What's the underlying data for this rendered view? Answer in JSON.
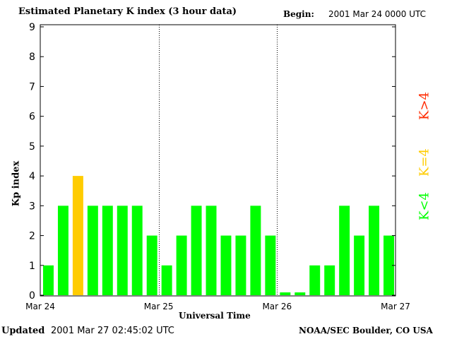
{
  "header": {
    "title": "Estimated Planetary K index (3 hour data)",
    "begin_label": "Begin:",
    "begin_value": "2001 Mar 24 0000 UTC"
  },
  "footer": {
    "updated_label": "Updated",
    "updated_value": "2001 Mar 27 02:45:02 UTC",
    "credit": "NOAA/SEC Boulder, CO USA"
  },
  "legend": [
    {
      "label": "K>4",
      "color": "#ff2a00"
    },
    {
      "label": "K=4",
      "color": "#ffcc00"
    },
    {
      "label": "K<4",
      "color": "#00ff00"
    }
  ],
  "chart_data": {
    "type": "bar",
    "title": "Estimated Planetary K index (3 hour data)",
    "xlabel": "Universal Time",
    "ylabel": "Kp index",
    "ylim": [
      0,
      9
    ],
    "yticks": [
      "0",
      "1",
      "2",
      "3",
      "4",
      "5",
      "6",
      "7",
      "8",
      "9"
    ],
    "xticks": [
      "Mar 24",
      "Mar 25",
      "Mar 26",
      "Mar 27"
    ],
    "categories": [
      "Mar 24 00",
      "Mar 24 03",
      "Mar 24 06",
      "Mar 24 09",
      "Mar 24 12",
      "Mar 24 15",
      "Mar 24 18",
      "Mar 24 21",
      "Mar 25 00",
      "Mar 25 03",
      "Mar 25 06",
      "Mar 25 09",
      "Mar 25 12",
      "Mar 25 15",
      "Mar 25 18",
      "Mar 25 21",
      "Mar 26 00",
      "Mar 26 03",
      "Mar 26 06",
      "Mar 26 09",
      "Mar 26 12",
      "Mar 26 15",
      "Mar 26 18",
      "Mar 26 21"
    ],
    "values": [
      1,
      3,
      4,
      3,
      3,
      3,
      3,
      2,
      1,
      2,
      3,
      3,
      2,
      2,
      3,
      2,
      0,
      0,
      1,
      1,
      3,
      2,
      3,
      2
    ],
    "colors": {
      "below4": "#00ff00",
      "equal4": "#ffcc00",
      "above4": "#ff2a00"
    },
    "day_separators": [
      "Mar 25",
      "Mar 26"
    ],
    "grid": false
  }
}
